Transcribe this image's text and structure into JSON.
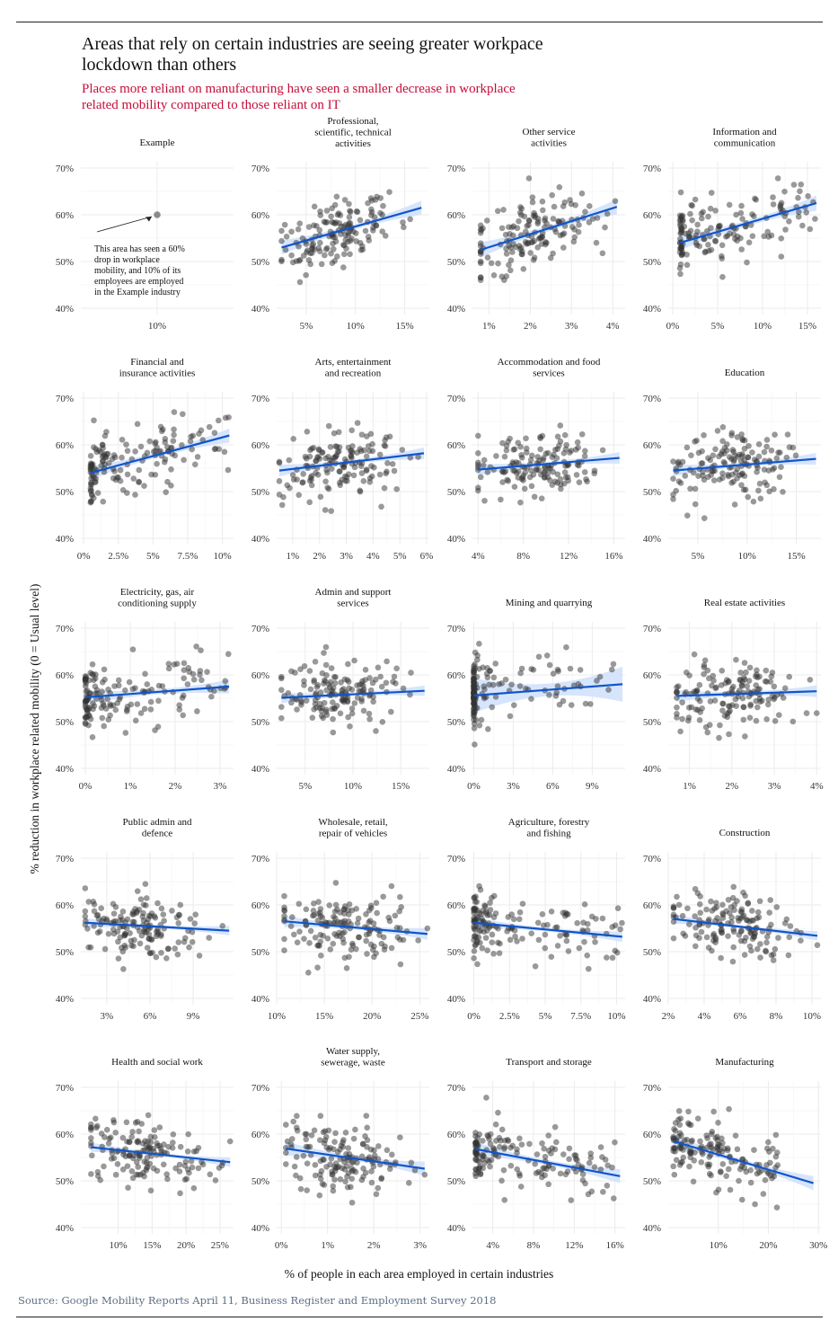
{
  "title": "Areas that rely on certain industries are seeing greater workpace lockdown than others",
  "subtitle": "Places more reliant on manufacturing have seen a smaller decrease in workplace related mobility compared to those reliant on IT",
  "y_axis_label": "% reduction in workplace related mobility (0 = Usual level)",
  "x_axis_label": "% of people in each area employed in certain industries",
  "source": "Source: Google Mobility Reports April 11, Business Register and Employment Survey 2018",
  "colors": {
    "points": "#333333",
    "trend": "#1155c8",
    "band": "#cfe0fb",
    "grid": "#ebebeb",
    "subtitle": "#c40d3a",
    "source": "#5b6f86"
  },
  "chart_data": [
    {
      "type": "scatter",
      "title": "Example",
      "xlim": [
        0,
        0.2
      ],
      "ylim": [
        0.4,
        0.7
      ],
      "x_ticks": [
        0.1
      ],
      "x_tick_labels": [
        "10%"
      ],
      "y_ticks": [
        0.4,
        0.5,
        0.6,
        0.7
      ],
      "y_tick_labels": [
        "40%",
        "50%",
        "60%",
        "70%"
      ],
      "points": [
        [
          0.1,
          0.6
        ]
      ],
      "annotation": "This area has seen a 60% drop in workplace mobility, and 10% of its employees are employed in the Example industry"
    },
    {
      "type": "scatter",
      "title": "Professional, scientific, technical activities",
      "xlim": [
        0.02,
        0.175
      ],
      "ylim": [
        0.4,
        0.7
      ],
      "x_ticks": [
        0.05,
        0.1,
        0.15
      ],
      "x_tick_labels": [
        "5%",
        "10%",
        "15%"
      ],
      "y_ticks": [
        0.4,
        0.5,
        0.6,
        0.7
      ],
      "y_tick_labels": [
        "40%",
        "50%",
        "60%",
        "70%"
      ],
      "trend": [
        0.025,
        0.53,
        0.167,
        0.615
      ],
      "band": 0.012
    },
    {
      "type": "scatter",
      "title": "Other service activities",
      "xlim": [
        0.006,
        0.043
      ],
      "ylim": [
        0.4,
        0.7
      ],
      "x_ticks": [
        0.01,
        0.02,
        0.03,
        0.04
      ],
      "x_tick_labels": [
        "1%",
        "2%",
        "3%",
        "4%"
      ],
      "y_ticks": [
        0.4,
        0.5,
        0.6,
        0.7
      ],
      "y_tick_labels": [
        "40%",
        "50%",
        "60%",
        "70%"
      ],
      "trend": [
        0.008,
        0.525,
        0.041,
        0.617
      ],
      "band": 0.013
    },
    {
      "type": "scatter",
      "title": "Information and communication",
      "xlim": [
        -0.005,
        0.165
      ],
      "ylim": [
        0.4,
        0.7
      ],
      "x_ticks": [
        0.0,
        0.05,
        0.1,
        0.15
      ],
      "x_tick_labels": [
        "0%",
        "5%",
        "10%",
        "15%"
      ],
      "y_ticks": [
        0.4,
        0.5,
        0.6,
        0.7
      ],
      "y_tick_labels": [
        "40%",
        "50%",
        "60%",
        "70%"
      ],
      "trend": [
        0.008,
        0.54,
        0.16,
        0.625
      ],
      "band": 0.013
    },
    {
      "type": "scatter",
      "title": "Financial and insurance activities",
      "xlim": [
        -0.002,
        0.108
      ],
      "ylim": [
        0.4,
        0.7
      ],
      "x_ticks": [
        0.0,
        0.025,
        0.05,
        0.075,
        0.1
      ],
      "x_tick_labels": [
        "0%",
        "2.5%",
        "5%",
        "7.5%",
        "10%"
      ],
      "y_ticks": [
        0.4,
        0.5,
        0.6,
        0.7
      ],
      "y_tick_labels": [
        "40%",
        "50%",
        "60%",
        "70%"
      ],
      "trend": [
        0.005,
        0.54,
        0.105,
        0.62
      ],
      "band": 0.012
    },
    {
      "type": "scatter",
      "title": "Arts, entertainment and recreation",
      "xlim": [
        0.004,
        0.061
      ],
      "ylim": [
        0.4,
        0.7
      ],
      "x_ticks": [
        0.01,
        0.02,
        0.03,
        0.04,
        0.05,
        0.06
      ],
      "x_tick_labels": [
        "1%",
        "2%",
        "3%",
        "4%",
        "5%",
        "6%"
      ],
      "y_ticks": [
        0.4,
        0.5,
        0.6,
        0.7
      ],
      "y_tick_labels": [
        "40%",
        "50%",
        "60%",
        "70%"
      ],
      "trend": [
        0.005,
        0.545,
        0.059,
        0.582
      ],
      "band": 0.01
    },
    {
      "type": "scatter",
      "title": "Accommodation and food services",
      "xlim": [
        0.035,
        0.17
      ],
      "ylim": [
        0.4,
        0.7
      ],
      "x_ticks": [
        0.04,
        0.08,
        0.12,
        0.16
      ],
      "x_tick_labels": [
        "4%",
        "8%",
        "12%",
        "16%"
      ],
      "y_ticks": [
        0.4,
        0.5,
        0.6,
        0.7
      ],
      "y_tick_labels": [
        "40%",
        "50%",
        "60%",
        "70%"
      ],
      "trend": [
        0.04,
        0.547,
        0.165,
        0.572
      ],
      "band": 0.01
    },
    {
      "type": "scatter",
      "title": "Education",
      "xlim": [
        0.02,
        0.175
      ],
      "ylim": [
        0.4,
        0.7
      ],
      "x_ticks": [
        0.05,
        0.1,
        0.15
      ],
      "x_tick_labels": [
        "5%",
        "10%",
        "15%"
      ],
      "y_ticks": [
        0.4,
        0.5,
        0.6,
        0.7
      ],
      "y_tick_labels": [
        "40%",
        "50%",
        "60%",
        "70%"
      ],
      "trend": [
        0.025,
        0.545,
        0.17,
        0.57
      ],
      "band": 0.01
    },
    {
      "type": "scatter",
      "title": "Electricity, gas, air conditioning supply",
      "xlim": [
        -0.001,
        0.033
      ],
      "ylim": [
        0.4,
        0.7
      ],
      "x_ticks": [
        0.0,
        0.01,
        0.02,
        0.03
      ],
      "x_tick_labels": [
        "0%",
        "1%",
        "2%",
        "3%"
      ],
      "y_ticks": [
        0.4,
        0.5,
        0.6,
        0.7
      ],
      "y_tick_labels": [
        "40%",
        "50%",
        "60%",
        "70%"
      ],
      "trend": [
        0.0,
        0.552,
        0.032,
        0.575
      ],
      "band": 0.012
    },
    {
      "type": "scatter",
      "title": "Admin and support services",
      "xlim": [
        0.02,
        0.18
      ],
      "ylim": [
        0.4,
        0.7
      ],
      "x_ticks": [
        0.05,
        0.1,
        0.15
      ],
      "x_tick_labels": [
        "5%",
        "10%",
        "15%"
      ],
      "y_ticks": [
        0.4,
        0.5,
        0.6,
        0.7
      ],
      "y_tick_labels": [
        "40%",
        "50%",
        "60%",
        "70%"
      ],
      "trend": [
        0.025,
        0.551,
        0.175,
        0.566
      ],
      "band": 0.009
    },
    {
      "type": "scatter",
      "title": "Mining and quarrying",
      "xlim": [
        -0.001,
        0.115
      ],
      "ylim": [
        0.4,
        0.7
      ],
      "x_ticks": [
        0.0,
        0.03,
        0.06,
        0.09
      ],
      "x_tick_labels": [
        "0%",
        "3%",
        "6%",
        "9%"
      ],
      "y_ticks": [
        0.4,
        0.5,
        0.6,
        0.7
      ],
      "y_tick_labels": [
        "40%",
        "50%",
        "60%",
        "70%"
      ],
      "trend": [
        0.0,
        0.556,
        0.113,
        0.58
      ],
      "band": 0.03
    },
    {
      "type": "scatter",
      "title": "Real estate activities",
      "xlim": [
        0.005,
        0.041
      ],
      "ylim": [
        0.4,
        0.7
      ],
      "x_ticks": [
        0.01,
        0.02,
        0.03,
        0.04
      ],
      "x_tick_labels": [
        "1%",
        "2%",
        "3%",
        "4%"
      ],
      "y_ticks": [
        0.4,
        0.5,
        0.6,
        0.7
      ],
      "y_tick_labels": [
        "40%",
        "50%",
        "60%",
        "70%"
      ],
      "trend": [
        0.007,
        0.555,
        0.04,
        0.565
      ],
      "band": 0.01
    },
    {
      "type": "scatter",
      "title": "Public admin and defence",
      "xlim": [
        0.012,
        0.118
      ],
      "ylim": [
        0.4,
        0.7
      ],
      "x_ticks": [
        0.03,
        0.06,
        0.09
      ],
      "x_tick_labels": [
        "3%",
        "6%",
        "9%"
      ],
      "y_ticks": [
        0.4,
        0.5,
        0.6,
        0.7
      ],
      "y_tick_labels": [
        "40%",
        "50%",
        "60%",
        "70%"
      ],
      "trend": [
        0.015,
        0.562,
        0.115,
        0.545
      ],
      "band": 0.008
    },
    {
      "type": "scatter",
      "title": "Wholesale, retail, repair of vehicles",
      "xlim": [
        0.1,
        0.26
      ],
      "ylim": [
        0.4,
        0.7
      ],
      "x_ticks": [
        0.1,
        0.15,
        0.2,
        0.25
      ],
      "x_tick_labels": [
        "10%",
        "15%",
        "20%",
        "25%"
      ],
      "y_ticks": [
        0.4,
        0.5,
        0.6,
        0.7
      ],
      "y_tick_labels": [
        "40%",
        "50%",
        "60%",
        "70%"
      ],
      "trend": [
        0.108,
        0.565,
        0.258,
        0.538
      ],
      "band": 0.01
    },
    {
      "type": "scatter",
      "title": "Agriculture, forestry and fishing",
      "xlim": [
        -0.001,
        0.106
      ],
      "ylim": [
        0.4,
        0.7
      ],
      "x_ticks": [
        0.0,
        0.025,
        0.05,
        0.075,
        0.1
      ],
      "x_tick_labels": [
        "0%",
        "2.5%",
        "5%",
        "7.5%",
        "10%"
      ],
      "y_ticks": [
        0.4,
        0.5,
        0.6,
        0.7
      ],
      "y_tick_labels": [
        "40%",
        "50%",
        "60%",
        "70%"
      ],
      "trend": [
        0.0,
        0.562,
        0.104,
        0.532
      ],
      "band": 0.009
    },
    {
      "type": "scatter",
      "title": "Construction",
      "xlim": [
        0.02,
        0.105
      ],
      "ylim": [
        0.4,
        0.7
      ],
      "x_ticks": [
        0.02,
        0.04,
        0.06,
        0.08,
        0.1
      ],
      "x_tick_labels": [
        "2%",
        "4%",
        "6%",
        "8%",
        "10%"
      ],
      "y_ticks": [
        0.4,
        0.5,
        0.6,
        0.7
      ],
      "y_tick_labels": [
        "40%",
        "50%",
        "60%",
        "70%"
      ],
      "trend": [
        0.023,
        0.57,
        0.103,
        0.534
      ],
      "band": 0.008
    },
    {
      "type": "scatter",
      "title": "Health and social work",
      "xlim": [
        0.045,
        0.27
      ],
      "ylim": [
        0.4,
        0.7
      ],
      "x_ticks": [
        0.1,
        0.15,
        0.2,
        0.25
      ],
      "x_tick_labels": [
        "10%",
        "15%",
        "20%",
        "25%"
      ],
      "y_ticks": [
        0.4,
        0.5,
        0.6,
        0.7
      ],
      "y_tick_labels": [
        "40%",
        "50%",
        "60%",
        "70%"
      ],
      "trend": [
        0.06,
        0.572,
        0.265,
        0.54
      ],
      "band": 0.008
    },
    {
      "type": "scatter",
      "title": "Water supply, sewerage, waste",
      "xlim": [
        -0.001,
        0.032
      ],
      "ylim": [
        0.4,
        0.7
      ],
      "x_ticks": [
        0.0,
        0.01,
        0.02,
        0.03
      ],
      "x_tick_labels": [
        "0%",
        "1%",
        "2%",
        "3%"
      ],
      "y_ticks": [
        0.4,
        0.5,
        0.6,
        0.7
      ],
      "y_tick_labels": [
        "40%",
        "50%",
        "60%",
        "70%"
      ],
      "trend": [
        0.001,
        0.569,
        0.031,
        0.526
      ],
      "band": 0.012
    },
    {
      "type": "scatter",
      "title": "Transport and storage",
      "xlim": [
        0.02,
        0.17
      ],
      "ylim": [
        0.4,
        0.7
      ],
      "x_ticks": [
        0.04,
        0.08,
        0.12,
        0.16
      ],
      "x_tick_labels": [
        "4%",
        "8%",
        "12%",
        "16%"
      ],
      "y_ticks": [
        0.4,
        0.5,
        0.6,
        0.7
      ],
      "y_tick_labels": [
        "40%",
        "50%",
        "60%",
        "70%"
      ],
      "trend": [
        0.023,
        0.568,
        0.165,
        0.51
      ],
      "band": 0.012
    },
    {
      "type": "scatter",
      "title": "Manufacturing",
      "xlim": [
        0.0,
        0.305
      ],
      "ylim": [
        0.4,
        0.7
      ],
      "x_ticks": [
        0.1,
        0.2,
        0.3
      ],
      "x_tick_labels": [
        "10%",
        "20%",
        "30%"
      ],
      "y_ticks": [
        0.4,
        0.5,
        0.6,
        0.7
      ],
      "y_tick_labels": [
        "40%",
        "50%",
        "60%",
        "70%"
      ],
      "trend": [
        0.01,
        0.585,
        0.29,
        0.495
      ],
      "band": 0.012
    }
  ]
}
